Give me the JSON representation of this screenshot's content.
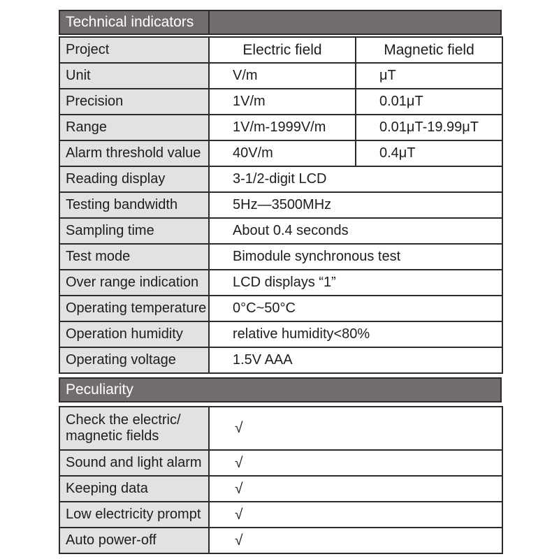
{
  "colors": {
    "section_band_bg": "#716d6d",
    "label_cell_bg": "#e3e2e0",
    "border": "#2e2a2a",
    "band_text": "#ffffff"
  },
  "tech": {
    "title": "Technical indicators",
    "header_row": {
      "label": "Project",
      "electric": "Electric field",
      "magnetic": "Magnetic field"
    },
    "two_col_rows": [
      {
        "label": "Unit",
        "electric": "V/m",
        "magnetic": "μT"
      },
      {
        "label": "Precision",
        "electric": "1V/m",
        "magnetic": "0.01μT"
      },
      {
        "label": "Range",
        "electric": "1V/m-1999V/m",
        "magnetic": "0.01μT-19.99μT"
      },
      {
        "label": "Alarm threshold value",
        "electric": "40V/m",
        "magnetic": "0.4μT"
      }
    ],
    "span_rows": [
      {
        "label": "Reading display",
        "value": "3-1/2-digit LCD"
      },
      {
        "label": "Testing bandwidth",
        "value": "5Hz—3500MHz"
      },
      {
        "label": "Sampling time",
        "value": "About 0.4 seconds"
      },
      {
        "label": "Test mode",
        "value": "Bimodule synchronous test"
      },
      {
        "label": "Over range indication",
        "value": "LCD displays “1”"
      },
      {
        "label": "Operating temperature",
        "value": "0°C~50°C"
      },
      {
        "label": "Operation humidity",
        "value": "relative humidity<80%"
      },
      {
        "label": "Operating voltage",
        "value": "1.5V AAA"
      }
    ]
  },
  "peculiarity": {
    "title": "Peculiarity",
    "check_symbol": "√",
    "rows": [
      {
        "label": "Check the electric/\nmagnetic fields",
        "value": "√"
      },
      {
        "label": "Sound and light alarm",
        "value": "√"
      },
      {
        "label": "Keeping data",
        "value": "√"
      },
      {
        "label": "Low electricity prompt",
        "value": "√"
      },
      {
        "label": "Auto power-off",
        "value": "√"
      }
    ]
  }
}
